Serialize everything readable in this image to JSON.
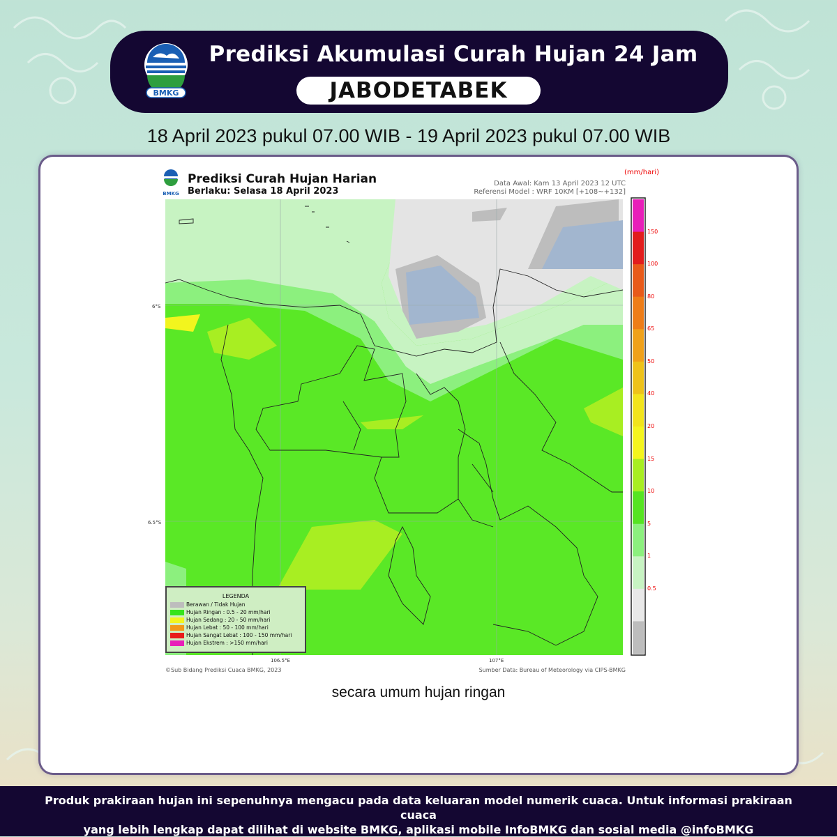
{
  "header": {
    "title": "Prediksi Akumulasi Curah Hujan 24 Jam",
    "region": "JABODETABEK",
    "logo_text": "BMKG"
  },
  "period": "18 April 2023 pukul 07.00 WIB - 19 April 2023 pukul 07.00 WIB",
  "map": {
    "title": "Prediksi Curah Hujan Harian",
    "subtitle": "Berlaku: Selasa 18 April 2023",
    "logo_text": "BMKG",
    "data_awal": "Data Awal: Kam 13 April 2023 12 UTC",
    "referensi": "Referensi Model : WRF 10KM [+108~+132]",
    "unit": "(mm/hari)",
    "lat_labels": [
      "6°S",
      "6.5°S"
    ],
    "lon_labels": [
      "106.5°E",
      "107°E"
    ],
    "copyright": "©Sub Bidang Prediksi Cuaca BMKG, 2023",
    "source": "Sumber Data: Bureau of Meteorology via CIPS-BMKG"
  },
  "colorbar": {
    "ticks": [
      "150",
      "100",
      "80",
      "65",
      "50",
      "40",
      "20",
      "15",
      "10",
      "5",
      "1",
      "0.5"
    ],
    "colors": [
      "#e81fb9",
      "#e21d1d",
      "#e85a1a",
      "#ee7d18",
      "#f0a11a",
      "#eec21a",
      "#f2e41c",
      "#f4f51e",
      "#a8ee22",
      "#56e422",
      "#8cf07e",
      "#c7f3c2",
      "#e8e8e8",
      "#bdbdbd"
    ]
  },
  "legend": {
    "title": "LEGENDA",
    "items": [
      {
        "label": "Berawan / Tidak Hujan",
        "color": "#bdbdbd"
      },
      {
        "label": "Hujan Ringan : 0.5 - 20 mm/hari",
        "color": "#35e41c"
      },
      {
        "label": "Hujan Sedang : 20 - 50 mm/hari",
        "color": "#f2f51e"
      },
      {
        "label": "Hujan Lebat : 50 - 100 mm/hari",
        "color": "#f29a18"
      },
      {
        "label": "Hujan Sangat Lebat : 100 - 150 mm/hari",
        "color": "#e81b1b"
      },
      {
        "label": "Hujan Ekstrem : >150 mm/hari",
        "color": "#e81fb9"
      }
    ]
  },
  "caption": "secara umum hujan ringan",
  "disclaimer": {
    "line1": "Produk prakiraan hujan ini sepenuhnya mengacu pada data keluaran model numerik cuaca. Untuk informasi prakiraan cuaca",
    "line2": "yang lebih lengkap dapat dilihat di website BMKG, aplikasi mobile InfoBMKG dan sosial media @infoBMKG"
  }
}
